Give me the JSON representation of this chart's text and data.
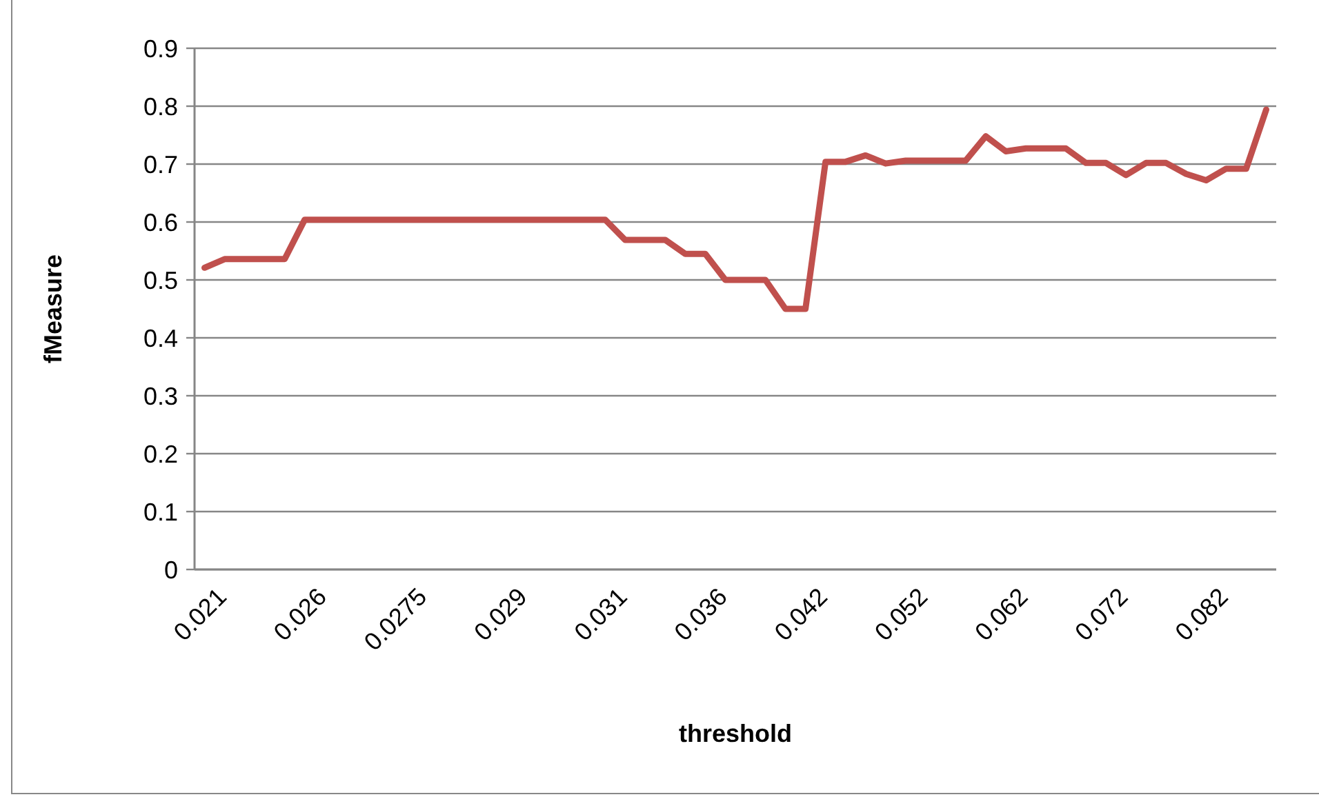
{
  "chart_data": {
    "type": "line",
    "xlabel": "threshold",
    "ylabel": "fMeasure",
    "categories": [
      "0.021",
      null,
      null,
      null,
      null,
      "0.026",
      null,
      null,
      null,
      null,
      "0.0275",
      null,
      null,
      null,
      null,
      "0.029",
      null,
      null,
      null,
      null,
      "0.031",
      null,
      null,
      null,
      null,
      "0.036",
      null,
      null,
      null,
      null,
      "0.042",
      null,
      null,
      null,
      null,
      "0.052",
      null,
      null,
      null,
      null,
      "0.062",
      null,
      null,
      null,
      null,
      "0.072",
      null,
      null,
      null,
      null,
      "0.082",
      null,
      null,
      null
    ],
    "series": [
      {
        "color": "#c0504d",
        "values": [
          0.521,
          0.536,
          0.536,
          0.536,
          0.536,
          0.604,
          0.604,
          0.604,
          0.604,
          0.604,
          0.604,
          0.604,
          0.604,
          0.604,
          0.604,
          0.604,
          0.604,
          0.604,
          0.604,
          0.604,
          0.604,
          0.569,
          0.569,
          0.569,
          0.545,
          0.545,
          0.5,
          0.5,
          0.5,
          0.45,
          0.45,
          0.704,
          0.704,
          0.715,
          0.701,
          0.706,
          0.706,
          0.706,
          0.706,
          0.748,
          0.722,
          0.727,
          0.727,
          0.727,
          0.702,
          0.702,
          0.681,
          0.702,
          0.702,
          0.683,
          0.672,
          0.692,
          0.692,
          0.794
        ]
      }
    ],
    "ylim": [
      0,
      0.9
    ],
    "yticks": [
      0,
      0.1,
      0.2,
      0.3,
      0.4,
      0.5,
      0.6,
      0.7,
      0.8,
      0.9
    ],
    "grid": "y",
    "marker": "none",
    "line_style": "solid"
  }
}
